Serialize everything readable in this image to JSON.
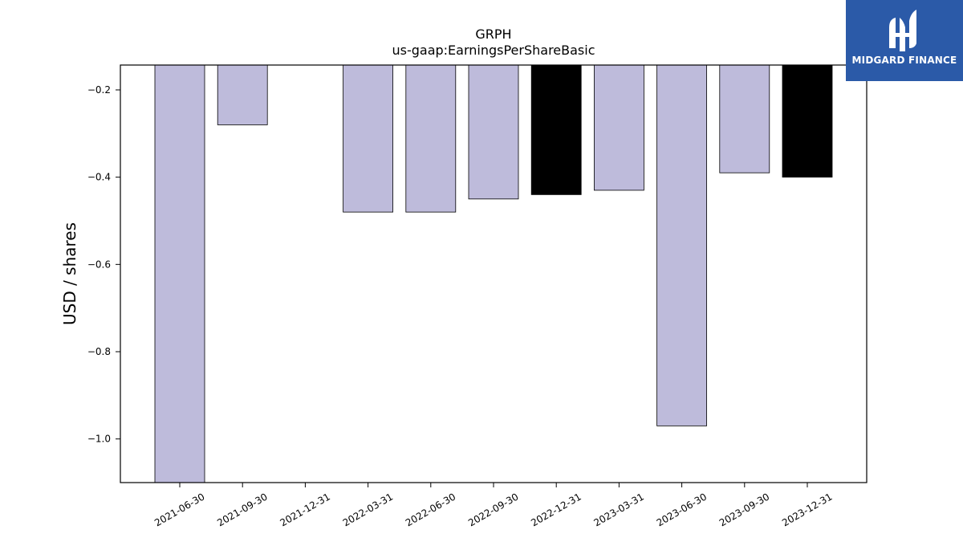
{
  "brand": {
    "name": "MIDGARD FINANCE",
    "bg_color": "#2b5aa8"
  },
  "chart_data": {
    "type": "bar",
    "title": "GRPH",
    "subtitle": "us-gaap:EarningsPerShareBasic",
    "ylabel": "USD / shares",
    "xlabel": "",
    "ylim": [
      -1.1,
      -0.143
    ],
    "yticks": [
      -0.2,
      -0.4,
      -0.6,
      -0.8,
      -1.0
    ],
    "categories": [
      "2021-06-30",
      "2021-09-30",
      "2021-12-31",
      "2022-03-31",
      "2022-06-30",
      "2022-09-30",
      "2022-12-31",
      "2023-03-31",
      "2023-06-30",
      "2023-09-30",
      "2023-12-31"
    ],
    "values": [
      -1.1,
      -0.28,
      null,
      -0.48,
      -0.48,
      -0.45,
      -0.44,
      -0.43,
      -0.97,
      -0.39,
      -0.4
    ],
    "highlight": [
      false,
      false,
      false,
      false,
      false,
      false,
      true,
      false,
      false,
      false,
      true
    ],
    "colors": {
      "bar": "#bebbdb",
      "highlight": "#000000",
      "edge": "#000000"
    },
    "grid": false
  }
}
